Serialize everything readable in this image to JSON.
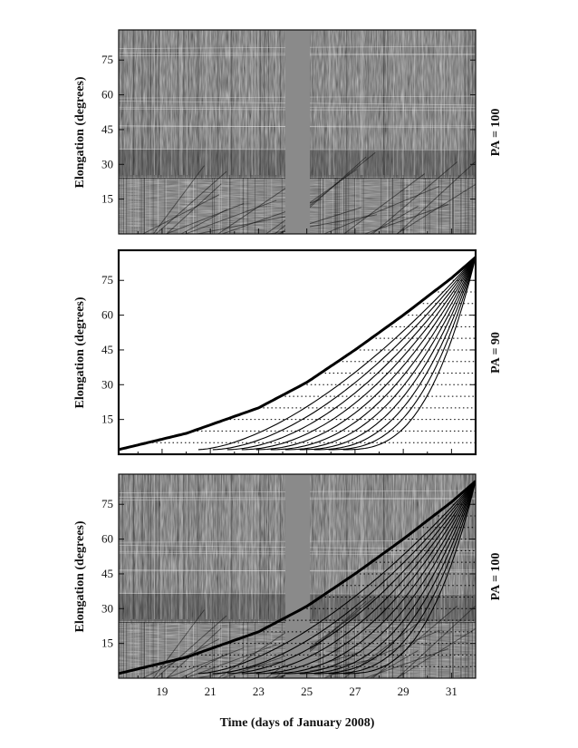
{
  "figure": {
    "x_axis_label": "Time (days of January 2008)",
    "x_tick_labels": [
      "19",
      "21",
      "23",
      "25",
      "27",
      "29",
      "31"
    ]
  },
  "panels": [
    {
      "id": "top",
      "kind": "j-map",
      "y_axis_label": "Elongation (degrees)",
      "right_label": "PA = 100",
      "y_tick_labels": [
        "15",
        "30",
        "45",
        "60",
        "75"
      ]
    },
    {
      "id": "middle",
      "kind": "model",
      "y_axis_label": "Elongation (degrees)",
      "right_label": "PA = 90",
      "y_tick_labels": [
        "15",
        "30",
        "45",
        "60",
        "75"
      ]
    },
    {
      "id": "bottom",
      "kind": "j-map-overlay",
      "y_axis_label": "Elongation (degrees)",
      "right_label": "PA = 100",
      "y_tick_labels": [
        "15",
        "30",
        "45",
        "60",
        "75"
      ]
    }
  ],
  "chart_data": [
    {
      "type": "image",
      "panel": "top",
      "x_range": [
        17.2,
        32
      ],
      "y_range": [
        0,
        88
      ],
      "data_gap_days": [
        24,
        25
      ],
      "hi1_hi2_boundary_elongation": 24,
      "colors": {
        "gap": "#8a8a8a",
        "background": "#6e6e6e"
      }
    },
    {
      "type": "line",
      "panel": "middle",
      "x_range": [
        17.2,
        32
      ],
      "y_range": [
        0,
        88
      ],
      "envelope_curve": {
        "x": [
          17.2,
          20,
          23,
          25,
          27,
          29,
          31,
          32
        ],
        "y": [
          2,
          9,
          20,
          31,
          45,
          60,
          76,
          85
        ]
      },
      "track_start_days": [
        20.5,
        21.1,
        21.7,
        22.3,
        22.9,
        23.5,
        24.1,
        24.7,
        25.3,
        25.9,
        26.5
      ],
      "dotted_levels_elongation": [
        5,
        10,
        15,
        20,
        25,
        30,
        35,
        40,
        45,
        50,
        55,
        60,
        65,
        70,
        75,
        80
      ]
    },
    {
      "type": "image",
      "panel": "bottom",
      "x_range": [
        17.2,
        32
      ],
      "y_range": [
        0,
        88
      ],
      "data_gap_days": [
        24,
        25
      ],
      "overlay": "model tracks of middle panel"
    }
  ]
}
